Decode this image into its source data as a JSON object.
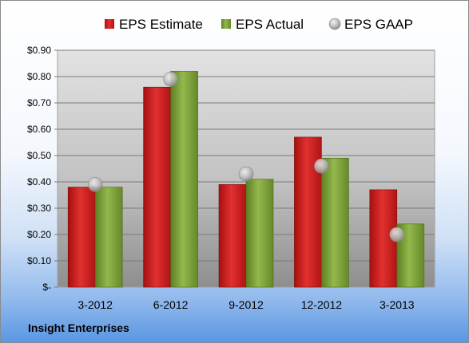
{
  "company": "Insight Enterprises",
  "colors": {
    "estimate": "#d11f1f",
    "actual": "#7da235",
    "gaap": "#b8b8b8"
  },
  "chart_data": {
    "type": "bar",
    "categories": [
      "3-2012",
      "6-2012",
      "9-2012",
      "12-2012",
      "3-2013"
    ],
    "series": [
      {
        "name": "EPS Estimate",
        "kind": "bar",
        "values": [
          0.38,
          0.76,
          0.39,
          0.57,
          0.37
        ]
      },
      {
        "name": "EPS Actual",
        "kind": "bar",
        "values": [
          0.38,
          0.82,
          0.41,
          0.49,
          0.24
        ]
      },
      {
        "name": "EPS GAAP",
        "kind": "marker",
        "values": [
          0.39,
          0.79,
          0.43,
          0.46,
          0.2
        ]
      }
    ],
    "ylim": [
      0,
      0.9
    ],
    "yticks": [
      0,
      0.1,
      0.2,
      0.3,
      0.4,
      0.5,
      0.6,
      0.7,
      0.8,
      0.9
    ],
    "ytick_labels": [
      "$-",
      "$0.10",
      "$0.20",
      "$0.30",
      "$0.40",
      "$0.50",
      "$0.60",
      "$0.70",
      "$0.80",
      "$0.90"
    ],
    "legend_position": "top",
    "grid": true
  }
}
